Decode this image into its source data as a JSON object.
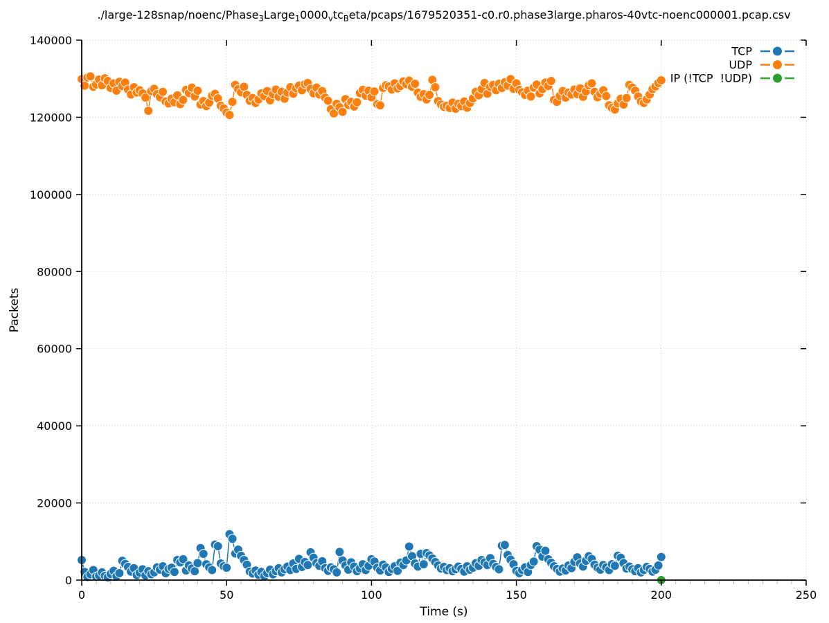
{
  "title": {
    "segments": [
      {
        "t": "./large-128snap/noenc/Phase",
        "sub": false
      },
      {
        "t": "3",
        "sub": true
      },
      {
        "t": "Large",
        "sub": false
      },
      {
        "t": "1",
        "sub": true
      },
      {
        "t": "0000",
        "sub": false
      },
      {
        "t": "v",
        "sub": true
      },
      {
        "t": "tc",
        "sub": false
      },
      {
        "t": "B",
        "sub": true
      },
      {
        "t": "eta/pcaps/1679520351-c0.r0.phase3large.pharos-40vtc-noenc000001.pcap.csv",
        "sub": false
      }
    ]
  },
  "colors": {
    "tcp": "#1f77b4",
    "udp": "#ff7f0e",
    "ip_other": "#2ca02c",
    "grid": "#c8c8c8",
    "minor_tick": "#90cf90",
    "axis": "#000000",
    "background": "#ffffff"
  },
  "chart_data": {
    "type": "line",
    "title_plain": "./large-128snap/noenc/Phase_3Large_10000_vtc_Beta/pcaps/1679520351-c0.r0.phase3large.pharos-40vtc-noenc000001.pcap.csv",
    "xlabel": "Time (s)",
    "ylabel": "Packets",
    "xlim": [
      0,
      250
    ],
    "ylim": [
      0,
      140000
    ],
    "xticks": [
      0,
      50,
      100,
      150,
      200,
      250
    ],
    "yticks": [
      0,
      20000,
      40000,
      60000,
      80000,
      100000,
      120000,
      140000
    ],
    "minor_xtick_step": 5,
    "grid": "dotted",
    "legend_position": "top-right",
    "marker": "circle",
    "series": [
      {
        "name": "TCP",
        "color": "#1f77b4",
        "x_start": 0,
        "x_step": 1,
        "values": [
          5200,
          2100,
          800,
          1500,
          2600,
          900,
          1200,
          2000,
          1100,
          700,
          1600,
          2400,
          1000,
          1800,
          5000,
          4200,
          3400,
          2200,
          3100,
          1300,
          1900,
          2800,
          1200,
          2300,
          1500,
          2000,
          3300,
          2700,
          3600,
          1800,
          2900,
          3200,
          2100,
          5200,
          4600,
          5400,
          2500,
          3800,
          3000,
          2300,
          4400,
          8300,
          6800,
          4100,
          3300,
          2600,
          9200,
          8800,
          4300,
          3600,
          3200,
          11900,
          10700,
          6900,
          7900,
          6300,
          5200,
          4000,
          2200,
          1700,
          2500,
          1400,
          2100,
          1000,
          1800,
          2700,
          1500,
          2300,
          3100,
          2000,
          2800,
          3500,
          2600,
          4300,
          2900,
          5500,
          3400,
          4700,
          3900,
          7200,
          5800,
          4400,
          3700,
          4900,
          3100,
          2400,
          3300,
          2800,
          2000,
          7300,
          5100,
          3800,
          2700,
          4600,
          3500,
          2300,
          3000,
          4100,
          2600,
          3700,
          5400,
          4800,
          3200,
          2500,
          4000,
          3300,
          2100,
          2900,
          3600,
          2400,
          4500,
          3900,
          5100,
          8700,
          6200,
          4300,
          3500,
          6800,
          4100,
          7000,
          6400,
          5600,
          4700,
          3800,
          3000,
          3400,
          2600,
          3100,
          2300,
          2800,
          3500,
          2900,
          2200,
          3600,
          2700,
          3200,
          4400,
          3700,
          5200,
          4600,
          3900,
          5700,
          4200,
          3400,
          2800,
          8900,
          9100,
          6500,
          5300,
          4100,
          2400,
          1800,
          2600,
          3300,
          2100,
          3900,
          4800,
          8800,
          7900,
          6100,
          7600,
          5400,
          4500,
          3600,
          2900,
          2200,
          3000,
          2500,
          3800,
          3100,
          4700,
          5900,
          4300,
          3500,
          5000,
          6200,
          5500,
          4000,
          3200,
          2700,
          3900,
          3300,
          2600,
          4100,
          3700,
          6300,
          5800,
          4400,
          3000,
          3500,
          2800,
          2300,
          3100,
          2000,
          2600,
          3400,
          2900,
          2200,
          2700,
          3800,
          6000
        ]
      },
      {
        "name": "UDP",
        "color": "#ff7f0e",
        "x_start": 0,
        "x_step": 1,
        "values": [
          129900,
          128200,
          130300,
          130600,
          127900,
          128500,
          129800,
          128300,
          130100,
          129400,
          127600,
          128800,
          126900,
          129200,
          128100,
          129000,
          127200,
          125900,
          127800,
          126400,
          127000,
          126200,
          125100,
          121700,
          126800,
          127400,
          126000,
          125200,
          126600,
          124100,
          123600,
          124800,
          123900,
          125700,
          123400,
          124500,
          127100,
          126300,
          127700,
          125400,
          126900,
          123300,
          124200,
          122900,
          123800,
          125600,
          126100,
          124900,
          123000,
          122300,
          121200,
          120600,
          124000,
          128400,
          127300,
          126500,
          127900,
          125800,
          124300,
          125000,
          123700,
          124600,
          126200,
          125500,
          126800,
          124400,
          126000,
          127200,
          125300,
          126600,
          124800,
          126400,
          127800,
          126100,
          127500,
          128200,
          127000,
          128600,
          128900,
          127400,
          126200,
          127700,
          125900,
          126800,
          125100,
          124300,
          122100,
          121000,
          123500,
          122600,
          121400,
          124700,
          123200,
          124000,
          122800,
          123900,
          126300,
          127100,
          125600,
          126900,
          125200,
          126700,
          123400,
          123100,
          127600,
          128300,
          128000,
          127200,
          128800,
          127500,
          128100,
          129300,
          128600,
          129500,
          127900,
          128700,
          126400,
          125300,
          126000,
          124600,
          125800,
          129700,
          127800,
          124200,
          123300,
          122700,
          123000,
          122400,
          123800,
          122200,
          123500,
          122900,
          124100,
          122500,
          123700,
          124900,
          126600,
          125700,
          127300,
          128900,
          126100,
          127900,
          128400,
          127000,
          128700,
          127600,
          129100,
          128200,
          129900,
          127400,
          128800,
          127100,
          126500,
          125800,
          126900,
          125400,
          127700,
          128500,
          126200,
          127300,
          129000,
          128100,
          129400,
          124500,
          124000,
          125600,
          126800,
          125100,
          126400,
          125900,
          127200,
          126000,
          127500,
          125300,
          126700,
          128300,
          128800,
          126600,
          125200,
          126100,
          127000,
          125500,
          123100,
          122400,
          122000,
          123600,
          124800,
          123300,
          125000,
          128400,
          127700,
          126900,
          125400,
          124100,
          123700,
          124600,
          125900,
          127300,
          128000,
          128900,
          129600
        ]
      },
      {
        "name": "IP (!TCP  !UDP)",
        "color": "#2ca02c",
        "points": [
          [
            200,
            0
          ]
        ]
      }
    ]
  }
}
